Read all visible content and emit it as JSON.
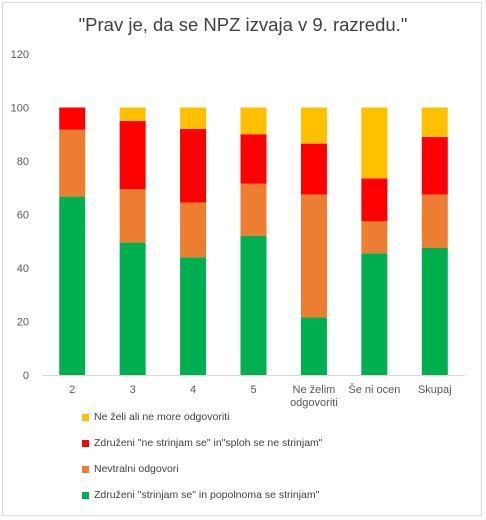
{
  "chart_data": {
    "type": "bar",
    "stacked": true,
    "title": "\"Prav je, da se NPZ izvaja v 9. razredu.\"",
    "categories": [
      "2",
      "3",
      "4",
      "5",
      "Ne želim odgovoriti",
      "Še ni ocen",
      "Skupaj"
    ],
    "category_lines": [
      [
        "2"
      ],
      [
        "3"
      ],
      [
        "4"
      ],
      [
        "5"
      ],
      [
        "Ne želim",
        "odgovoriti"
      ],
      [
        "Še ni ocen"
      ],
      [
        "Skupaj"
      ]
    ],
    "ylim": [
      0,
      120
    ],
    "yticks": [
      0,
      20,
      40,
      60,
      80,
      100,
      120
    ],
    "grid": false,
    "legend_position": "bottom-left",
    "series": [
      {
        "name": "Združeni  \"strinjam se\" in popolnoma se strinjam\"",
        "color": "#00b050",
        "values": [
          66.7,
          49.5,
          44.0,
          52.0,
          21.5,
          45.5,
          47.5
        ]
      },
      {
        "name": "Nevtralni odgovori",
        "color": "#ed7d31",
        "values": [
          25.0,
          20.0,
          20.5,
          19.5,
          46.0,
          12.0,
          20.0
        ]
      },
      {
        "name": "Združeni  \"ne strinjam se\" in\"sploh se ne strinjam\"",
        "color": "#ff0000",
        "values": [
          8.3,
          25.5,
          27.5,
          18.5,
          19.0,
          16.0,
          21.5
        ]
      },
      {
        "name": "Ne želi ali ne more odgovoriti",
        "color": "#ffc000",
        "values": [
          0.0,
          5.0,
          8.0,
          10.0,
          13.5,
          26.5,
          11.0
        ]
      }
    ]
  },
  "legend": {
    "items": [
      {
        "label": "Ne želi ali ne more odgovoriti",
        "color": "#ffc000"
      },
      {
        "label": "Združeni  \"ne strinjam se\" in\"sploh se ne strinjam\"",
        "color": "#ff0000"
      },
      {
        "label": "Nevtralni odgovori",
        "color": "#ed7d31"
      },
      {
        "label": "Združeni  \"strinjam se\" in popolnoma se strinjam\"",
        "color": "#00b050"
      }
    ]
  }
}
